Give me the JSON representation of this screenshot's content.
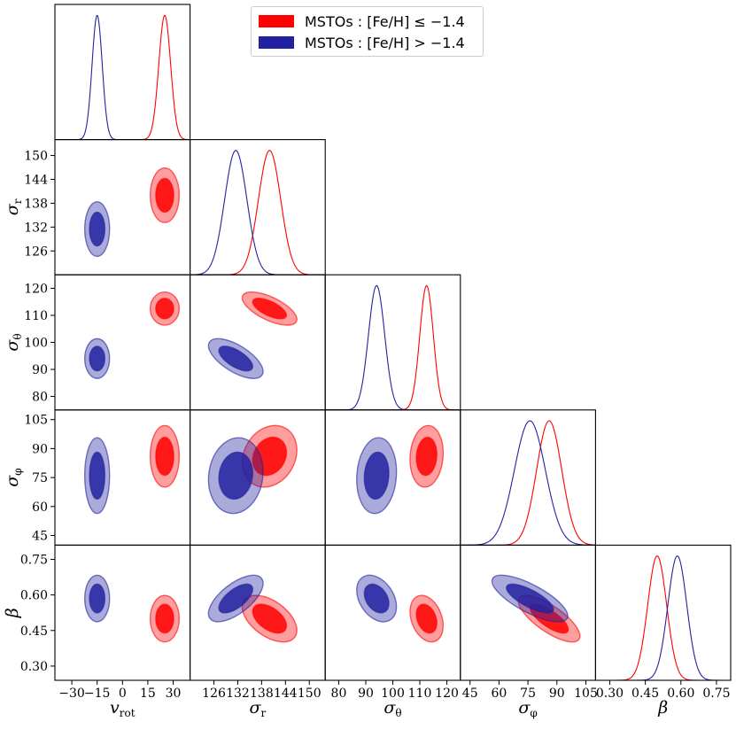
{
  "colors": {
    "poor": "#ff0000",
    "rich": "#2222a0"
  },
  "legend": {
    "poor_label": "MSTOs :  [Fe/H] ≤ −1.4",
    "rich_label": "MSTOs :  [Fe/H] > −1.4"
  },
  "chart_data": {
    "type": "corner",
    "title": "",
    "parameters": [
      {
        "key": "vrot",
        "label": "v",
        "label_sub": "rot",
        "range": [
          -40,
          40
        ],
        "ticks": [
          -30,
          -15,
          0,
          15,
          30
        ]
      },
      {
        "key": "sigr",
        "label": "σ",
        "label_sub": "r",
        "range": [
          120,
          154
        ],
        "ticks": [
          126,
          132,
          138,
          144,
          150
        ]
      },
      {
        "key": "sigth",
        "label": "σ",
        "label_sub": "θ",
        "range": [
          75,
          125
        ],
        "ticks": [
          80,
          90,
          100,
          110,
          120
        ]
      },
      {
        "key": "sigphi",
        "label": "σ",
        "label_sub": "φ",
        "range": [
          40,
          110
        ],
        "ticks": [
          45,
          60,
          75,
          90,
          105
        ]
      },
      {
        "key": "beta",
        "label": "β",
        "label_sub": "",
        "range": [
          0.24,
          0.81
        ],
        "ticks": [
          0.3,
          0.45,
          0.6,
          0.75
        ]
      }
    ],
    "y_tick_labels": {
      "sigr": [
        126,
        132,
        138,
        144,
        150
      ],
      "sigth": [
        80,
        90,
        100,
        110,
        120
      ],
      "sigphi": [
        45,
        60,
        75,
        90,
        105
      ],
      "beta": [
        "0.30",
        "0.45",
        "0.60",
        "0.75"
      ]
    },
    "x_tick_labels": {
      "vrot": [
        "−30",
        "−15",
        "0",
        "15",
        "30"
      ],
      "sigr": [
        "126",
        "132",
        "138",
        "144",
        "150"
      ],
      "sigth": [
        "80",
        "90",
        "100",
        "110",
        "120"
      ],
      "sigphi": [
        "45",
        "60",
        "75",
        "90",
        "105"
      ],
      "beta": [
        "0.30",
        "0.45",
        "0.60",
        "0.75"
      ]
    },
    "series": [
      {
        "name": "MSTOs : [Fe/H] ≤ −1.4",
        "color": "poor",
        "marginals": [
          {
            "mean": 25,
            "sd": 3.5
          },
          {
            "mean": 140,
            "sd": 2.8
          },
          {
            "mean": 112.5,
            "sd": 2.5
          },
          {
            "mean": 86,
            "sd": 6.5
          },
          {
            "mean": 0.5,
            "sd": 0.04
          }
        ],
        "correlations": {
          "1-2": -0.65,
          "1-3": 0.2,
          "2-3": 0.1,
          "3-4": -0.75,
          "1-4": -0.5,
          "2-4": -0.3
        }
      },
      {
        "name": "MSTOs : [Fe/H] > −1.4",
        "color": "rich",
        "marginals": [
          {
            "mean": -15,
            "sd": 3.0
          },
          {
            "mean": 131.5,
            "sd": 2.8
          },
          {
            "mean": 94,
            "sd": 3.0
          },
          {
            "mean": 76,
            "sd": 8.0
          },
          {
            "mean": 0.585,
            "sd": 0.04
          }
        ],
        "correlations": {
          "1-2": -0.65,
          "1-3": 0.1,
          "2-3": 0.1,
          "3-4": -0.75,
          "1-4": 0.65,
          "2-4": -0.35
        }
      }
    ]
  }
}
